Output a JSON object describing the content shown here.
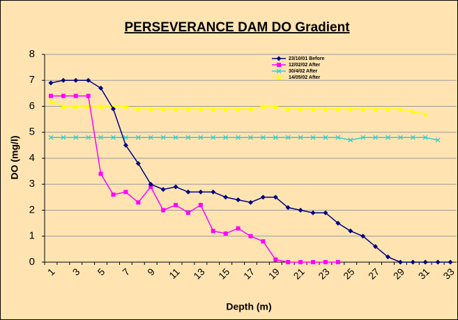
{
  "chart_data": {
    "type": "line",
    "title": "PERSEVERANCE DAM DO Gradient",
    "x_label": "Depth (m)",
    "y_label": "DO (mg/l)",
    "categories": [
      "1",
      null,
      "3",
      null,
      "5",
      null,
      "7",
      null,
      "9",
      null,
      "11",
      null,
      "13",
      null,
      "15",
      null,
      "17",
      null,
      "19",
      null,
      "21",
      null,
      "23",
      null,
      "25",
      null,
      "27",
      null,
      "29",
      null,
      "31",
      null,
      "33"
    ],
    "series": [
      {
        "name": "23/10/01 Before",
        "color": "#000080",
        "marker": "diamond",
        "values": [
          6.9,
          7.0,
          7.0,
          7.0,
          6.7,
          5.9,
          4.5,
          3.8,
          3.0,
          2.8,
          2.9,
          2.7,
          2.7,
          2.7,
          2.5,
          2.4,
          2.3,
          2.5,
          2.5,
          2.1,
          2.0,
          1.9,
          1.9,
          1.5,
          1.2,
          1.0,
          0.6,
          0.2,
          0,
          0,
          0,
          0,
          0
        ]
      },
      {
        "name": "12/02/02 After",
        "color": "#FF00FF",
        "marker": "square",
        "values": [
          6.4,
          6.4,
          6.4,
          6.4,
          3.4,
          2.6,
          2.7,
          2.3,
          2.9,
          2.0,
          2.2,
          1.9,
          2.2,
          1.2,
          1.1,
          1.3,
          1.0,
          0.8,
          0.1,
          0,
          0,
          0,
          0,
          0,
          null,
          null,
          null,
          null,
          null,
          null,
          null,
          null,
          null
        ]
      },
      {
        "name": "30/4/02 After",
        "color": "#33CCCC",
        "marker": "x",
        "values": [
          4.8,
          4.8,
          4.8,
          4.8,
          4.8,
          4.8,
          4.8,
          4.8,
          4.8,
          4.8,
          4.8,
          4.8,
          4.8,
          4.8,
          4.8,
          4.8,
          4.8,
          4.8,
          4.8,
          4.8,
          4.8,
          4.8,
          4.8,
          4.8,
          4.7,
          4.8,
          4.8,
          4.8,
          4.8,
          4.8,
          4.8,
          4.7,
          null
        ]
      },
      {
        "name": "14/05/02 After",
        "color": "#FFFF00",
        "marker": "triangle",
        "values": [
          6.2,
          6.0,
          6.0,
          6.0,
          6.0,
          6.0,
          6.0,
          5.9,
          5.9,
          5.9,
          5.9,
          5.9,
          5.9,
          5.9,
          5.9,
          5.9,
          5.9,
          6.0,
          6.0,
          5.9,
          5.9,
          5.9,
          5.9,
          5.9,
          5.9,
          5.9,
          5.9,
          5.9,
          5.9,
          5.8,
          5.7,
          null,
          null
        ]
      }
    ],
    "ylim": [
      0,
      8
    ],
    "yticks": [
      0,
      1,
      2,
      3,
      4,
      5,
      6,
      7,
      8
    ],
    "grid": true,
    "legend": "top-right"
  }
}
